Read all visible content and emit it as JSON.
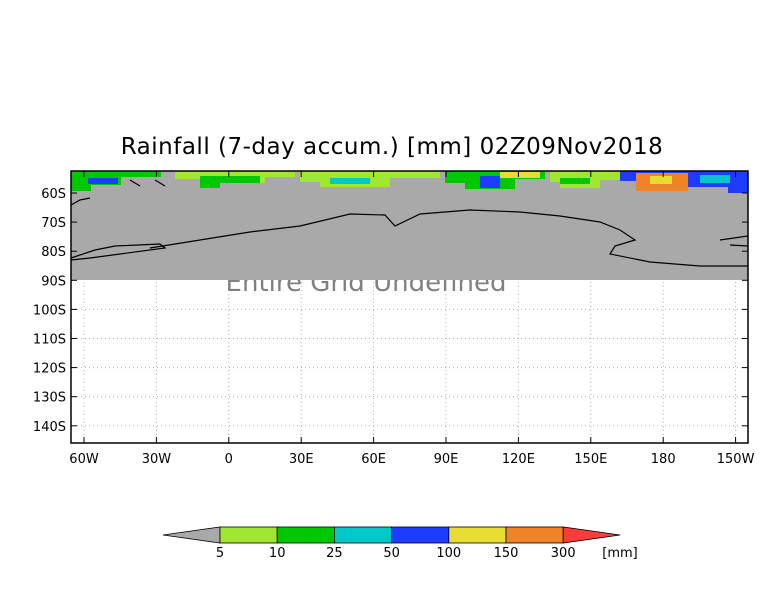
{
  "title": "Rainfall (7-day accum.) [mm] 02Z09Nov2018",
  "overlay_text": "Entire Grid Undefined",
  "map": {
    "lat_labels": [
      "60S",
      "70S",
      "80S",
      "90S",
      "100S",
      "110S",
      "120S",
      "130S",
      "140S"
    ],
    "lon_labels": [
      "60W",
      "30W",
      "0",
      "30E",
      "60E",
      "90E",
      "120E",
      "150E",
      "180",
      "150W"
    ],
    "undefined_color": "#a9a9a9",
    "coastline_color": "#000000"
  },
  "colorbar": {
    "unit_label": "[mm]",
    "tick_labels": [
      "5",
      "10",
      "25",
      "50",
      "100",
      "150",
      "300"
    ],
    "below_color": "#a9a9a9",
    "colors": [
      "#a0e632",
      "#00c800",
      "#00c8c8",
      "#1e3cff",
      "#e6dc32",
      "#f08228",
      "#fa3c3c"
    ]
  }
}
